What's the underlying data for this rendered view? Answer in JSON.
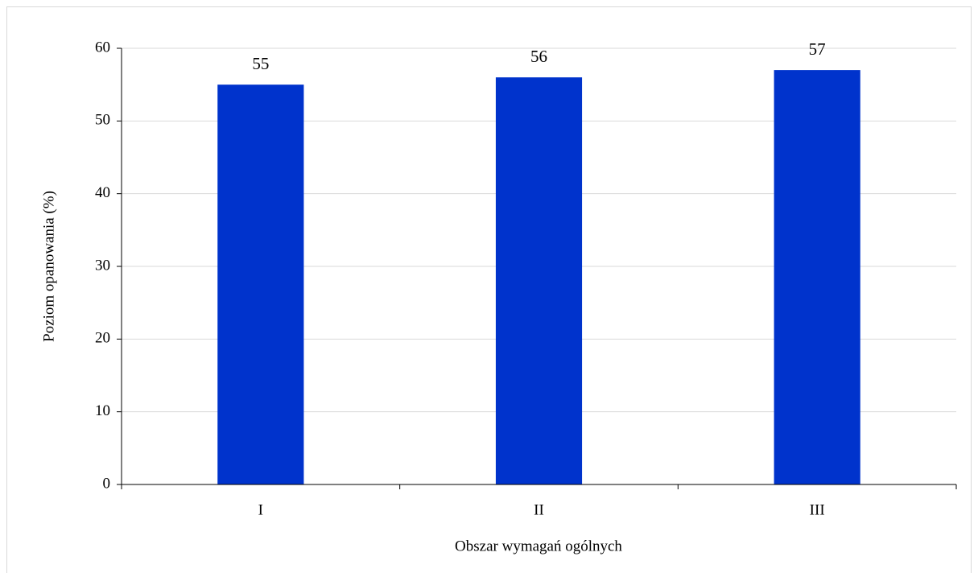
{
  "chart_data": {
    "type": "bar",
    "categories": [
      "I",
      "II",
      "III"
    ],
    "values": [
      55,
      56,
      57
    ],
    "color": "#0033cc",
    "xlabel": "Obszar wymagań ogólnych",
    "ylabel": "Poziom opanowania (%)",
    "ylim": [
      0,
      60
    ],
    "yticks": [
      0,
      10,
      20,
      30,
      40,
      50,
      60
    ],
    "grid": true
  }
}
